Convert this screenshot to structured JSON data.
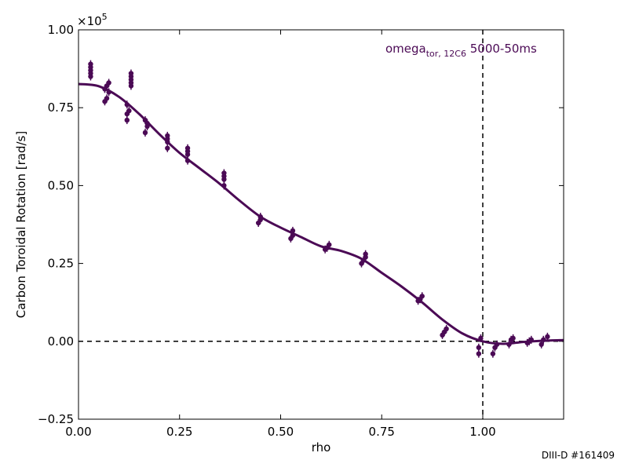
{
  "chart_data": {
    "type": "scatter",
    "xlabel": "rho",
    "ylabel": "Carbon Toroidal Rotation [rad/s]",
    "scale_label": "×10",
    "scale_exponent": "5",
    "xlim": [
      0.0,
      1.2
    ],
    "ylim": [
      -0.25,
      1.0
    ],
    "x_ticks": [
      0.0,
      0.25,
      0.5,
      0.75,
      1.0
    ],
    "x_tick_labels": [
      "0.00",
      "0.25",
      "0.50",
      "0.75",
      "1.00"
    ],
    "y_ticks": [
      -0.25,
      0.0,
      0.25,
      0.5,
      0.75,
      1.0
    ],
    "y_tick_labels": [
      "−0.25",
      "0.00",
      "0.25",
      "0.50",
      "0.75",
      "1.00"
    ],
    "color": "#4b0a55",
    "grid": false,
    "annotation": {
      "main": "omega",
      "sub": "tor, 12C6",
      "rest": " 5000-50ms"
    },
    "reference_lines": {
      "horizontal_y": 0.0,
      "vertical_x": 1.0,
      "style": "dashed"
    },
    "series": [
      {
        "kind": "points",
        "x": [
          0.03,
          0.03,
          0.03,
          0.03,
          0.03,
          0.065,
          0.07,
          0.075,
          0.065,
          0.07,
          0.075,
          0.12,
          0.12,
          0.125,
          0.12,
          0.13,
          0.13,
          0.13,
          0.13,
          0.13,
          0.165,
          0.17,
          0.17,
          0.165,
          0.22,
          0.22,
          0.22,
          0.22,
          0.27,
          0.27,
          0.27,
          0.27,
          0.36,
          0.36,
          0.36,
          0.36,
          0.445,
          0.45,
          0.45,
          0.525,
          0.53,
          0.53,
          0.61,
          0.615,
          0.62,
          0.7,
          0.705,
          0.71,
          0.71,
          0.84,
          0.845,
          0.85,
          0.9,
          0.905,
          0.91,
          0.99,
          0.99,
          0.995,
          1.025,
          1.03,
          1.035,
          1.065,
          1.07,
          1.075,
          1.11,
          1.115,
          1.12,
          1.145,
          1.15,
          1.16
        ],
        "y": [
          0.89,
          0.88,
          0.87,
          0.86,
          0.85,
          0.77,
          0.78,
          0.8,
          0.81,
          0.82,
          0.83,
          0.71,
          0.73,
          0.74,
          0.76,
          0.82,
          0.83,
          0.84,
          0.85,
          0.86,
          0.67,
          0.69,
          0.7,
          0.71,
          0.62,
          0.64,
          0.65,
          0.66,
          0.58,
          0.6,
          0.61,
          0.62,
          0.5,
          0.52,
          0.53,
          0.54,
          0.38,
          0.39,
          0.4,
          0.33,
          0.34,
          0.355,
          0.295,
          0.3,
          0.31,
          0.25,
          0.26,
          0.27,
          0.28,
          0.13,
          0.135,
          0.145,
          0.02,
          0.03,
          0.04,
          -0.04,
          -0.02,
          0.01,
          -0.04,
          -0.02,
          -0.01,
          -0.01,
          0.005,
          0.01,
          -0.005,
          0.0,
          0.005,
          -0.01,
          0.005,
          0.015
        ]
      },
      {
        "kind": "fit",
        "x": [
          0.0,
          0.05,
          0.1,
          0.15,
          0.2,
          0.25,
          0.3,
          0.35,
          0.4,
          0.45,
          0.5,
          0.55,
          0.6,
          0.65,
          0.7,
          0.75,
          0.8,
          0.85,
          0.9,
          0.95,
          1.0,
          1.05,
          1.1,
          1.15,
          1.2
        ],
        "y": [
          0.826,
          0.819,
          0.785,
          0.73,
          0.665,
          0.605,
          0.555,
          0.505,
          0.45,
          0.4,
          0.365,
          0.335,
          0.305,
          0.29,
          0.265,
          0.22,
          0.175,
          0.125,
          0.07,
          0.025,
          0.0,
          -0.008,
          -0.002,
          0.002,
          0.004
        ]
      }
    ]
  },
  "footer": "DIII-D #161409"
}
